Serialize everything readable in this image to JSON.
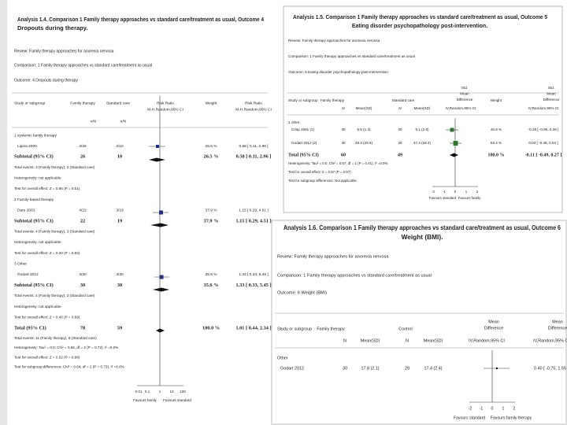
{
  "analysis_1_4": {
    "title": [
      "Analysis 1.4.   Comparison 1 Family therapy approaches vs standard care/treatment as usual, Outcome 4",
      "Dropouts during therapy."
    ],
    "review": "Review:   Family therapy approaches for anorexia nervosa",
    "comparison": "Comparison:   1 Family therapy approaches vs standard care/treatment as usual",
    "outcome": "Outcome:   4 Dropouts during therapy",
    "headers": {
      "study": "Study or subgroup",
      "family": "Family therapy",
      "standard": "Standard care",
      "plot": [
        "Risk Ratio",
        "M-H,Random,95% CI"
      ],
      "weight": "Weight",
      "result": [
        "Risk Ratio",
        "M-H,Random,95% CI"
      ]
    },
    "subheaders": {
      "family": "n/N",
      "standard": "n/N"
    },
    "groups": [
      {
        "name": "1 systemic family therapy",
        "studies": [
          {
            "study": "Lipina 2000",
            "family": "3/26",
            "standard": "2/10",
            "weight": "26.5 %",
            "result": "0.58 [ 0.11, 2.96 ]"
          }
        ],
        "subtotal": {
          "study": "Subtotal (95% CI)",
          "family": "26",
          "standard": "10",
          "weight": "26.5 %",
          "result": "0.58 [ 0.11, 2.96 ]"
        },
        "notes": [
          "Total events: 3 (Family therapy), 2 (Standard care)",
          "Heterogeneity: not applicable",
          "Test for overall effect: Z = 0.66 (P = 0.51)"
        ]
      },
      {
        "name": "2 Family-based therapy",
        "studies": [
          {
            "study": "Dare 2001",
            "family": "4/22",
            "standard": "3/19",
            "weight": "37.9 %",
            "result": "1.15 [ 0.29, 4.51 ]"
          }
        ],
        "subtotal": {
          "study": "Subtotal (95% CI)",
          "family": "22",
          "standard": "19",
          "weight": "37.9 %",
          "result": "1.15 [ 0.29, 4.51 ]"
        },
        "notes": [
          "Total events: 4 (Family therapy), 3 (Standard care)",
          "Heterogeneity: not applicable",
          "Test for overall effect: Z = 0.20 (P = 0.84)"
        ]
      },
      {
        "name": "3 Other",
        "studies": [
          {
            "study": "Godart 2012",
            "family": "4/30",
            "standard": "3/30",
            "weight": "35.6 %",
            "result": "1.33 [ 0.33, 5.45 ]"
          }
        ],
        "subtotal": {
          "study": "Subtotal (95% CI)",
          "family": "30",
          "standard": "30",
          "weight": "35.6 %",
          "result": "1.33 [ 0.33, 5.45 ]"
        },
        "notes": [
          "Total events: 4 (Family therapy), 3 (Standard care)",
          "Heterogeneity: not applicable",
          "Test for overall effect: Z = 0.40 (P = 0.69)"
        ]
      }
    ],
    "total": {
      "study": "Total (95% CI)",
      "family": "78",
      "standard": "59",
      "weight": "100.0 %",
      "result": "1.01 [ 0.44, 2.34 ]"
    },
    "total_notes": [
      "Total events: 11 (Family therapy), 8 (Standard care)",
      "Heterogeneity: Tau² = 0.0; Chi² = 0.66, df = 2 (P = 0.72); I² =0.0%",
      "Test for overall effect: Z = 0.02 (P = 0.98)",
      "Test for subgroup differences: Chi² = 0.64, df = 2 (P = 0.73), I² =0.0%"
    ],
    "axis": [
      "0.01",
      "0.1",
      "1",
      "10",
      "100"
    ],
    "favours": [
      "Favours family",
      "Favours standard"
    ]
  },
  "analysis_1_5": {
    "title": [
      "Analysis 1.5.   Comparison 1 Family therapy approaches vs standard care/treatment as usual, Outcome 5",
      "Eating disorder psychopathology post-intervention."
    ],
    "review": "Review:   Family therapy approaches for anorexia nervosa",
    "comparison": "Comparison:   1 Family therapy approaches vs standard care/treatment as usual",
    "outcome": "Outcome:   5 Eating disorder psychopathology post-intervention",
    "headers": {
      "study": "Study or subgroup",
      "family": "Family therapy",
      "standard": "Standard care",
      "plot": [
        "Std.",
        "Mean",
        "Difference"
      ],
      "weight": "Weight",
      "result": [
        "Std.",
        "Mean",
        "Difference"
      ]
    },
    "subheaders": {
      "family_n": "N",
      "family_mean": "Mean(SD)",
      "standard_n": "N",
      "standard_mean": "Mean(SD)",
      "plot": "IV,Random,95% CI",
      "result": "IV,Random,95% CI"
    },
    "groups": [
      {
        "name": "1 other",
        "studies": [
          {
            "study": "Crisp 1991 (1)",
            "family_n": "30",
            "family_mean": "5.5 (1.3)",
            "standard_n": "20",
            "standard_mean": "6.1 (2.6)",
            "weight": "46.6 %",
            "result": "-0.29 [ -0.86, 0.28 ]"
          },
          {
            "study": "Godart 2012 (2)",
            "family_n": "30",
            "family_mean": "48.3 (28.8)",
            "standard_n": "29",
            "standard_mean": "47.4 (28.4)",
            "weight": "53.4 %",
            "result": "0.03 [ -0.48, 0.54 ]"
          }
        ]
      }
    ],
    "total": {
      "study": "Total (95% CI)",
      "family_n": "60",
      "standard_n": "49",
      "weight": "100.0 %",
      "result": "-0.11 [ -0.49, 0.27 ]"
    },
    "total_notes": [
      "Heterogeneity: Tau² = 0.0; Chi² = 0.67, df = 1 (P = 0.41); I² =0.0%",
      "Test for overall effect: Z = 0.57 (P = 0.57)",
      "Test for subgroup differences: Not applicable"
    ],
    "axis": [
      "-2",
      "-1",
      "0",
      "1",
      "2"
    ],
    "favours": [
      "Favours standard",
      "Favours family"
    ]
  },
  "analysis_1_6": {
    "title": [
      "Analysis 1.6.   Comparison 1 Family therapy approaches vs standard care/treatment as usual, Outcome 6",
      "Weight (BMI)."
    ],
    "review": "Review:   Family therapy approaches for anorexia nervosa",
    "comparison": "Comparison:   1 Family therapy approaches vs standard care/treatment as usual",
    "outcome": "Outcome:   6 Weight (BMI)",
    "headers": {
      "study": "Study or subgroup",
      "family": "Family therapy",
      "control": "Control",
      "plot": [
        "Mean",
        "Difference"
      ],
      "result": [
        "Mean",
        "Difference"
      ]
    },
    "subheaders": {
      "family_n": "N",
      "family_mean": "Mean(SD)",
      "control_n": "N",
      "control_mean": "Mean(SD)",
      "plot": "IV,Random,95% CI",
      "result": "IV,Random,95% CI"
    },
    "groups": [
      {
        "name": "Other",
        "studies": [
          {
            "study": "Godart 2012",
            "family_n": "30",
            "family_mean": "17.8 (2.1)",
            "control_n": "29",
            "control_mean": "17.4 (2.4)",
            "result": "0.40 [ -0.75, 1.55 ]"
          }
        ]
      }
    ],
    "axis": [
      "-2",
      "-1",
      "0",
      "1",
      "2"
    ],
    "favours": [
      "Favours standard",
      "Favours family therapy"
    ]
  }
}
